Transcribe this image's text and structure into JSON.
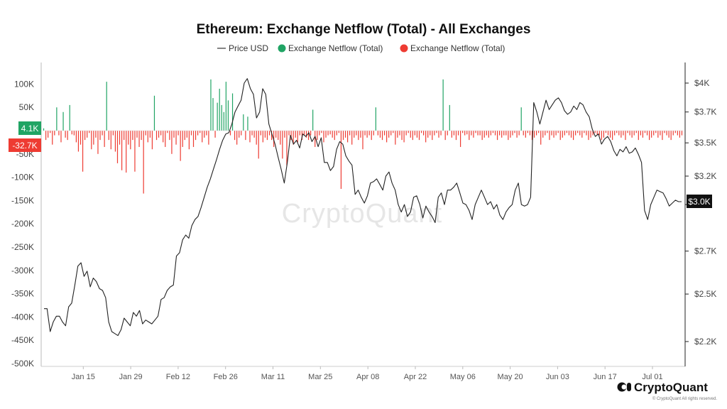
{
  "chart_data": {
    "type": "bar",
    "title": "Ethereum: Exchange Netflow (Total) - All Exchanges",
    "legend": {
      "placement": "top-center",
      "entries": [
        {
          "label": "Price USD",
          "color": "#333333",
          "marker": "line"
        },
        {
          "label": "Exchange Netflow (Total)",
          "color": "#20a464",
          "marker": "dot"
        },
        {
          "label": "Exchange Netflow (Total)",
          "color": "#ee3b32",
          "marker": "dot"
        }
      ]
    },
    "colors": {
      "positive": "#20a464",
      "negative": "#ee3b32",
      "price": "#222222",
      "axis_tag_price": "#111111"
    },
    "grid": false,
    "y_left": {
      "ticks": [
        100000,
        50000,
        0,
        -50000,
        -100000,
        -150000,
        -200000,
        -250000,
        -300000,
        -350000,
        -400000,
        -450000,
        -500000
      ],
      "tick_labels": [
        "100K",
        "50K",
        "0",
        "-50K",
        "-100K",
        "-150K",
        "-200K",
        "-250K",
        "-300K",
        "-350K",
        "-400K",
        "-450K",
        "-500K"
      ],
      "range": [
        -500000,
        110000
      ]
    },
    "y_right": {
      "ticks": [
        2200,
        2450,
        2700,
        3000,
        3200,
        3450,
        3700,
        3950
      ],
      "tick_labels": [
        "$2.2K",
        "$2.5K",
        "$2.7K",
        "$3K",
        "$3.2K",
        "$3.5K",
        "$3.7K",
        "$4K"
      ],
      "range": [
        2150,
        4000
      ],
      "scale": "log"
    },
    "x_axis": {
      "start": "2024-01-03",
      "end": "2024-07-10",
      "tick_labels": [
        "Jan 15",
        "Jan 29",
        "Feb 12",
        "Feb 26",
        "Mar 11",
        "Mar 25",
        "Apr 08",
        "Apr 22",
        "May 06",
        "May 20",
        "Jun 03",
        "Jun 17",
        "Jul 01"
      ],
      "tick_dates": [
        "2024-01-15",
        "2024-01-29",
        "2024-02-12",
        "2024-02-26",
        "2024-03-11",
        "2024-03-25",
        "2024-04-08",
        "2024-04-22",
        "2024-05-06",
        "2024-05-20",
        "2024-06-03",
        "2024-06-17",
        "2024-07-01"
      ]
    },
    "value_tags": {
      "netflow_positive": "4.1K",
      "netflow_negative": "-32.7K",
      "price": "$3.0K"
    },
    "series": [
      {
        "name": "Exchange Netflow (Total)",
        "axis": "left",
        "values": [
          5000,
          -20000,
          -15000,
          -5000,
          -30000,
          -10000,
          50000,
          -10000,
          -25000,
          40000,
          -15000,
          -20000,
          55000,
          -8000,
          -10000,
          -25000,
          -45000,
          -30000,
          -88000,
          -20000,
          -15000,
          -5000,
          -40000,
          -30000,
          -15000,
          -50000,
          -20000,
          -10000,
          -35000,
          105000,
          -20000,
          -40000,
          -10000,
          -45000,
          -70000,
          -30000,
          -85000,
          -20000,
          -90000,
          -30000,
          -40000,
          -20000,
          -88000,
          -15000,
          -35000,
          -20000,
          -135000,
          -10000,
          -25000,
          -15000,
          -40000,
          75000,
          -20000,
          -15000,
          -10000,
          -25000,
          -35000,
          -5000,
          -20000,
          -50000,
          -15000,
          -30000,
          -10000,
          -65000,
          -35000,
          -20000,
          -15000,
          -40000,
          -10000,
          -35000,
          -20000,
          -10000,
          -5000,
          -25000,
          -15000,
          -10000,
          -30000,
          110000,
          70000,
          -15000,
          60000,
          90000,
          55000,
          40000,
          105000,
          65000,
          -10000,
          80000,
          -20000,
          -30000,
          -15000,
          -10000,
          35000,
          -20000,
          30000,
          -25000,
          -10000,
          -15000,
          -30000,
          -60000,
          -10000,
          -25000,
          -15000,
          -20000,
          -10000,
          -20000,
          -35000,
          -15000,
          -20000,
          -30000,
          -60000,
          -15000,
          -75000,
          -10000,
          -20000,
          -30000,
          -15000,
          -25000,
          -10000,
          -20000,
          -10000,
          -15000,
          -20000,
          -10000,
          45000,
          -35000,
          -20000,
          -10000,
          -5000,
          -25000,
          -15000,
          -10000,
          -8000,
          -15000,
          -20000,
          -10000,
          -5000,
          -125000,
          -20000,
          -15000,
          -25000,
          -10000,
          -30000,
          -15000,
          -10000,
          -20000,
          -15000,
          -40000,
          -10000,
          -15000,
          -10000,
          -20000,
          -10000,
          50000,
          -10000,
          -15000,
          -20000,
          -10000,
          -25000,
          -15000,
          -10000,
          -5000,
          -30000,
          -15000,
          -10000,
          -20000,
          -25000,
          -10000,
          -5000,
          -15000,
          -20000,
          -10000,
          -15000,
          -20000,
          -5000,
          -10000,
          -25000,
          -15000,
          -10000,
          -20000,
          -10000,
          -5000,
          -15000,
          -10000,
          110000,
          -20000,
          -10000,
          55000,
          -15000,
          -10000,
          -20000,
          -10000,
          -35000,
          -5000,
          -10000,
          -8000,
          -20000,
          -10000,
          -15000,
          -5000,
          -10000,
          -10000,
          -20000,
          -15000,
          -10000,
          -15000,
          -10000,
          -5000,
          -10000,
          -20000,
          -10000,
          -15000,
          -10000,
          -10000,
          -20000,
          -15000,
          -10000,
          -5000,
          -15000,
          -10000,
          50000,
          -10000,
          -15000,
          -5000,
          -10000,
          -20000,
          -15000,
          -10000,
          -5000,
          -30000,
          -15000,
          -10000,
          -5000,
          -20000,
          -10000,
          -15000,
          -10000,
          -5000,
          -20000,
          -15000,
          -10000,
          -5000,
          -10000,
          -15000,
          -20000,
          -10000,
          -5000,
          -10000,
          -15000,
          -5000,
          -10000,
          -20000,
          -15000,
          -10000,
          -5000,
          -10000,
          -10000,
          -20000,
          -15000,
          -5000,
          -10000,
          -15000,
          -20000,
          -10000,
          -5000,
          -10000,
          -15000,
          -10000,
          -20000,
          -5000,
          -10000,
          -15000,
          -10000,
          -5000,
          -20000,
          -10000,
          -15000,
          -5000,
          -10000,
          -20000,
          -15000,
          -10000,
          -5000,
          -15000,
          -10000,
          -20000,
          -5000,
          -10000,
          -15000,
          -20000,
          -10000,
          -5000,
          -10000,
          -15000,
          -10000
        ]
      },
      {
        "name": "Price USD",
        "axis": "right",
        "values": [
          2370,
          2370,
          2250,
          2300,
          2330,
          2330,
          2300,
          2280,
          2380,
          2400,
          2500,
          2610,
          2630,
          2550,
          2580,
          2490,
          2540,
          2520,
          2480,
          2470,
          2430,
          2300,
          2250,
          2240,
          2230,
          2260,
          2320,
          2300,
          2280,
          2350,
          2330,
          2360,
          2290,
          2310,
          2300,
          2290,
          2310,
          2330,
          2420,
          2430,
          2470,
          2490,
          2500,
          2670,
          2690,
          2770,
          2800,
          2780,
          2860,
          2900,
          2920,
          2980,
          3050,
          3120,
          3180,
          3250,
          3320,
          3400,
          3470,
          3520,
          3530,
          3600,
          3700,
          3750,
          3800,
          3950,
          3990,
          3900,
          3850,
          3650,
          3700,
          3900,
          3850,
          3600,
          3520,
          3440,
          3340,
          3250,
          3150,
          3300,
          3510,
          3440,
          3470,
          3410,
          3520,
          3500,
          3530,
          3460,
          3500,
          3420,
          3490,
          3300,
          3300,
          3240,
          3270,
          3400,
          3460,
          3440,
          3350,
          3310,
          3280,
          3070,
          3100,
          3050,
          3010,
          3060,
          3150,
          3160,
          3180,
          3140,
          3100,
          3200,
          3230,
          3150,
          3100,
          3000,
          2950,
          3000,
          2920,
          2950,
          3050,
          3060,
          3000,
          2910,
          2990,
          2950,
          2920,
          2880,
          3050,
          3080,
          3000,
          3100,
          3100,
          3120,
          3150,
          3080,
          3010,
          3000,
          2960,
          2900,
          3000,
          3050,
          3100,
          3050,
          3000,
          3020,
          2970,
          3000,
          2930,
          2900,
          2950,
          2980,
          3000,
          3100,
          3150,
          3000,
          2990,
          3000,
          3050,
          3780,
          3700,
          3600,
          3700,
          3800,
          3720,
          3760,
          3800,
          3820,
          3780,
          3710,
          3680,
          3700,
          3750,
          3720,
          3780,
          3760,
          3700,
          3660,
          3560,
          3500,
          3520,
          3440,
          3480,
          3500,
          3460,
          3390,
          3350,
          3400,
          3380,
          3420,
          3370,
          3380,
          3410,
          3360,
          3300,
          2960,
          2900,
          3000,
          3050,
          3100,
          3090,
          3080,
          3040,
          2990,
          3010,
          3030,
          3020,
          3020
        ]
      }
    ]
  },
  "watermark": "CryptoQuant",
  "brand": {
    "name": "CryptoQuant",
    "copyright": "© CryptoQuant All rights reserved."
  }
}
